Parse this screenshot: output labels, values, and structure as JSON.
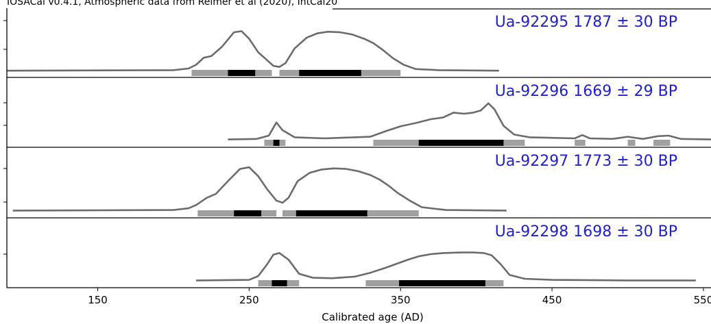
{
  "header": "IOSACal v0.4.1, Atmospheric data from Reimer et al (2020), IntCal20",
  "chart_data": {
    "type": "area",
    "xlabel": "Calibrated age (AD)",
    "xlim": [
      90,
      555
    ],
    "xticks": [
      150,
      250,
      350,
      450,
      550
    ],
    "colors": {
      "curve": "#6b6b6b",
      "hpd95": "#a0a0a0",
      "hpd68": "#000000",
      "label": "#1f1fcc"
    },
    "series": [
      {
        "name": "Ua-92295",
        "label": "Ua-92295 1787 ± 30 BP",
        "curve": [
          [
            90,
            0.01
          ],
          [
            200,
            0.02
          ],
          [
            210,
            0.05
          ],
          [
            215,
            0.12
          ],
          [
            220,
            0.25
          ],
          [
            225,
            0.28
          ],
          [
            232,
            0.45
          ],
          [
            240,
            0.72
          ],
          [
            245,
            0.74
          ],
          [
            250,
            0.6
          ],
          [
            256,
            0.35
          ],
          [
            262,
            0.2
          ],
          [
            266,
            0.1
          ],
          [
            270,
            0.08
          ],
          [
            274,
            0.15
          ],
          [
            280,
            0.42
          ],
          [
            288,
            0.62
          ],
          [
            295,
            0.7
          ],
          [
            302,
            0.73
          ],
          [
            310,
            0.72
          ],
          [
            318,
            0.68
          ],
          [
            326,
            0.6
          ],
          [
            332,
            0.52
          ],
          [
            338,
            0.4
          ],
          [
            345,
            0.24
          ],
          [
            352,
            0.12
          ],
          [
            360,
            0.04
          ],
          [
            375,
            0.02
          ],
          [
            415,
            0.01
          ]
        ],
        "hpd95": [
          [
            212,
            265
          ],
          [
            270,
            350
          ]
        ],
        "hpd68": [
          [
            236,
            254
          ],
          [
            283,
            324
          ]
        ]
      },
      {
        "name": "Ua-92296",
        "label": "Ua-92296 1669 ± 29 BP",
        "curve": [
          [
            236,
            0.03
          ],
          [
            255,
            0.04
          ],
          [
            263,
            0.1
          ],
          [
            268,
            0.34
          ],
          [
            272,
            0.2
          ],
          [
            280,
            0.07
          ],
          [
            300,
            0.05
          ],
          [
            330,
            0.08
          ],
          [
            340,
            0.18
          ],
          [
            350,
            0.27
          ],
          [
            360,
            0.33
          ],
          [
            370,
            0.4
          ],
          [
            378,
            0.43
          ],
          [
            385,
            0.52
          ],
          [
            392,
            0.5
          ],
          [
            398,
            0.52
          ],
          [
            403,
            0.56
          ],
          [
            408,
            0.69
          ],
          [
            412,
            0.58
          ],
          [
            418,
            0.28
          ],
          [
            425,
            0.12
          ],
          [
            435,
            0.07
          ],
          [
            450,
            0.06
          ],
          [
            465,
            0.05
          ],
          [
            470,
            0.11
          ],
          [
            475,
            0.05
          ],
          [
            490,
            0.04
          ],
          [
            500,
            0.08
          ],
          [
            510,
            0.04
          ],
          [
            520,
            0.09
          ],
          [
            527,
            0.1
          ],
          [
            535,
            0.04
          ],
          [
            555,
            0.03
          ]
        ],
        "hpd95": [
          [
            260,
            274
          ],
          [
            332,
            432
          ],
          [
            465,
            472
          ],
          [
            500,
            505
          ],
          [
            517,
            528
          ]
        ],
        "hpd68": [
          [
            266,
            270
          ],
          [
            362,
            418
          ]
        ]
      },
      {
        "name": "Ua-92297",
        "label": "Ua-92297 1773 ± 30 BP",
        "curve": [
          [
            94,
            0.02
          ],
          [
            200,
            0.03
          ],
          [
            210,
            0.06
          ],
          [
            215,
            0.12
          ],
          [
            222,
            0.25
          ],
          [
            228,
            0.32
          ],
          [
            236,
            0.55
          ],
          [
            244,
            0.77
          ],
          [
            250,
            0.8
          ],
          [
            256,
            0.64
          ],
          [
            262,
            0.4
          ],
          [
            268,
            0.2
          ],
          [
            272,
            0.16
          ],
          [
            276,
            0.25
          ],
          [
            282,
            0.55
          ],
          [
            290,
            0.7
          ],
          [
            298,
            0.76
          ],
          [
            306,
            0.78
          ],
          [
            314,
            0.77
          ],
          [
            322,
            0.73
          ],
          [
            330,
            0.66
          ],
          [
            336,
            0.58
          ],
          [
            342,
            0.47
          ],
          [
            348,
            0.34
          ],
          [
            356,
            0.2
          ],
          [
            364,
            0.08
          ],
          [
            380,
            0.03
          ],
          [
            420,
            0.02
          ]
        ],
        "hpd95": [
          [
            216,
            268
          ],
          [
            272,
            362
          ]
        ],
        "hpd68": [
          [
            240,
            258
          ],
          [
            281,
            328
          ]
        ]
      },
      {
        "name": "Ua-92298",
        "label": "Ua-92298 1698 ± 30 BP",
        "curve": [
          [
            215,
            0.02
          ],
          [
            250,
            0.03
          ],
          [
            256,
            0.1
          ],
          [
            262,
            0.32
          ],
          [
            266,
            0.49
          ],
          [
            270,
            0.52
          ],
          [
            276,
            0.4
          ],
          [
            283,
            0.14
          ],
          [
            292,
            0.07
          ],
          [
            305,
            0.06
          ],
          [
            320,
            0.09
          ],
          [
            330,
            0.16
          ],
          [
            340,
            0.25
          ],
          [
            348,
            0.33
          ],
          [
            355,
            0.4
          ],
          [
            362,
            0.46
          ],
          [
            370,
            0.5
          ],
          [
            378,
            0.52
          ],
          [
            390,
            0.53
          ],
          [
            398,
            0.53
          ],
          [
            405,
            0.52
          ],
          [
            410,
            0.48
          ],
          [
            416,
            0.32
          ],
          [
            422,
            0.12
          ],
          [
            432,
            0.05
          ],
          [
            450,
            0.03
          ],
          [
            500,
            0.02
          ],
          [
            545,
            0.02
          ]
        ],
        "hpd95": [
          [
            256,
            283
          ],
          [
            327,
            418
          ]
        ],
        "hpd68": [
          [
            265,
            275
          ],
          [
            349,
            406
          ]
        ]
      }
    ]
  }
}
